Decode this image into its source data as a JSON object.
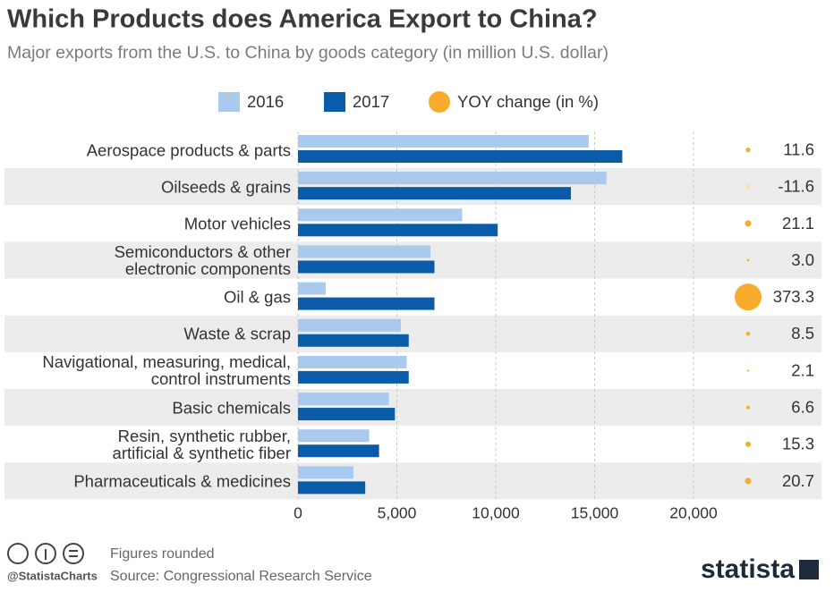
{
  "chart_data": {
    "type": "bar",
    "orientation": "horizontal",
    "title": "Which Products does America Export to China?",
    "subtitle": "Major exports from the U.S. to China by goods category (in million U.S. dollar)",
    "categories": [
      "Aerospace products & parts",
      "Oilseeds & grains",
      "Motor vehicles",
      "Semiconductors & other\nelectronic components",
      "Oil & gas",
      "Waste & scrap",
      "Navigational, measuring, medical,\ncontrol instruments",
      "Basic chemicals",
      "Resin, synthetic rubber,\nartificial & synthetic fiber",
      "Pharmaceuticals & medicines"
    ],
    "series": [
      {
        "name": "2016",
        "color": "#a9c9ef",
        "values": [
          14700,
          15600,
          8300,
          6700,
          1400,
          5200,
          5500,
          4600,
          3600,
          2800
        ]
      },
      {
        "name": "2017",
        "color": "#0b5ca8",
        "values": [
          16400,
          13800,
          10100,
          6900,
          6900,
          5600,
          5600,
          4900,
          4100,
          3400
        ]
      }
    ],
    "bubbles": {
      "name": "YOY change (in %)",
      "color": "#f8ac2c",
      "negative_color": "#fbe3b0",
      "values": [
        11.6,
        -11.6,
        21.1,
        3.0,
        373.3,
        8.5,
        2.1,
        6.6,
        15.3,
        20.7
      ],
      "value_labels": [
        "11.6",
        "-11.6",
        "21.1",
        "3.0",
        "373.3",
        "8.5",
        "2.1",
        "6.6",
        "15.3",
        "20.7"
      ]
    },
    "xlim": [
      0,
      20000
    ],
    "xticks": [
      0,
      {
        "value": 5000,
        "label": "5,000"
      },
      {
        "value": 10000,
        "label": "10,000"
      },
      {
        "value": 15000,
        "label": "15,000"
      },
      {
        "value": 20000,
        "label": "20,000"
      }
    ],
    "grid": true,
    "note": "Figures rounded",
    "source": "Source: Congressional Research Service",
    "credit": "@StatistaCharts",
    "brand": "statista"
  }
}
